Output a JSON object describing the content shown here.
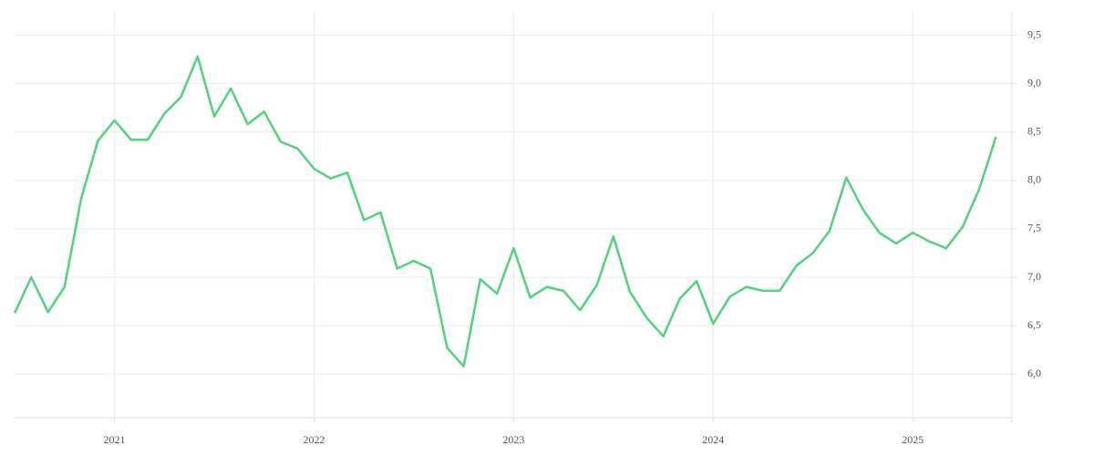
{
  "chart_data": {
    "type": "line",
    "x": [
      2020.5,
      2020.583,
      2020.667,
      2020.75,
      2020.833,
      2020.917,
      2021.0,
      2021.083,
      2021.167,
      2021.25,
      2021.333,
      2021.417,
      2021.5,
      2021.583,
      2021.667,
      2021.75,
      2021.833,
      2021.917,
      2022.0,
      2022.083,
      2022.167,
      2022.25,
      2022.333,
      2022.417,
      2022.5,
      2022.583,
      2022.667,
      2022.75,
      2022.833,
      2022.917,
      2023.0,
      2023.083,
      2023.167,
      2023.25,
      2023.333,
      2023.417,
      2023.5,
      2023.583,
      2023.667,
      2023.75,
      2023.833,
      2023.917,
      2024.0,
      2024.083,
      2024.167,
      2024.25,
      2024.333,
      2024.417,
      2024.5,
      2024.583,
      2024.667,
      2024.75,
      2024.833,
      2024.917,
      2025.0,
      2025.083,
      2025.167,
      2025.25,
      2025.333,
      2025.417
    ],
    "series": [
      {
        "color": "#52d17f",
        "values": [
          6.63,
          7.0,
          6.64,
          6.9,
          7.81,
          8.41,
          8.62,
          8.42,
          8.42,
          8.69,
          8.86,
          9.28,
          8.66,
          8.95,
          8.58,
          8.71,
          8.4,
          8.33,
          8.12,
          8.02,
          8.08,
          7.59,
          7.67,
          7.09,
          7.17,
          7.09,
          6.27,
          6.08,
          6.98,
          6.83,
          7.3,
          6.79,
          6.9,
          6.86,
          6.66,
          6.92,
          7.42,
          6.85,
          6.58,
          6.39,
          6.78,
          6.96,
          6.52,
          6.8,
          6.9,
          6.86,
          6.86,
          7.12,
          7.25,
          7.48,
          8.03,
          7.7,
          7.46,
          7.35,
          7.46,
          7.37,
          7.3,
          7.52,
          7.91,
          8.45
        ]
      }
    ],
    "xlim": [
      2020.495,
      2025.497
    ],
    "xticks": [
      2021,
      2022,
      2023,
      2024,
      2025
    ],
    "ylim": [
      5.55,
      9.75
    ],
    "yticks": [
      {
        "value": 6.0,
        "label": "6,0"
      },
      {
        "value": 6.5,
        "label": "6,5"
      },
      {
        "value": 7.0,
        "label": "7,0"
      },
      {
        "value": 7.5,
        "label": "7,5"
      },
      {
        "value": 8.0,
        "label": "8,0"
      },
      {
        "value": 8.5,
        "label": "8,5"
      },
      {
        "value": 9.0,
        "label": "9,0"
      },
      {
        "value": 9.5,
        "label": "9,5"
      }
    ],
    "grid": true
  }
}
